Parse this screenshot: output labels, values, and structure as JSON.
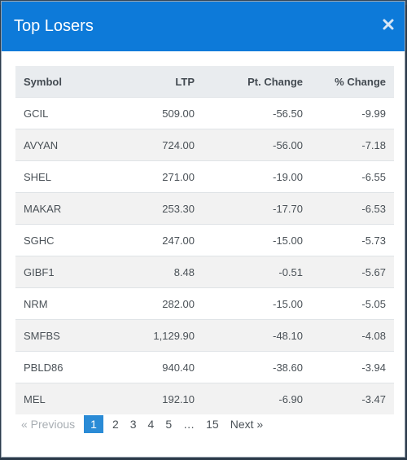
{
  "modal": {
    "title": "Top Losers",
    "close_icon": "close-icon",
    "accent_color": "#0d7ad9"
  },
  "table": {
    "headers": [
      "Symbol",
      "LTP",
      "Pt. Change",
      "% Change"
    ],
    "rows": [
      {
        "symbol": "GCIL",
        "ltp": "509.00",
        "pt_change": "-56.50",
        "pct_change": "-9.99"
      },
      {
        "symbol": "AVYAN",
        "ltp": "724.00",
        "pt_change": "-56.00",
        "pct_change": "-7.18"
      },
      {
        "symbol": "SHEL",
        "ltp": "271.00",
        "pt_change": "-19.00",
        "pct_change": "-6.55"
      },
      {
        "symbol": "MAKAR",
        "ltp": "253.30",
        "pt_change": "-17.70",
        "pct_change": "-6.53"
      },
      {
        "symbol": "SGHC",
        "ltp": "247.00",
        "pt_change": "-15.00",
        "pct_change": "-5.73"
      },
      {
        "symbol": "GIBF1",
        "ltp": "8.48",
        "pt_change": "-0.51",
        "pct_change": "-5.67"
      },
      {
        "symbol": "NRM",
        "ltp": "282.00",
        "pt_change": "-15.00",
        "pct_change": "-5.05"
      },
      {
        "symbol": "SMFBS",
        "ltp": "1,129.90",
        "pt_change": "-48.10",
        "pct_change": "-4.08"
      },
      {
        "symbol": "PBLD86",
        "ltp": "940.40",
        "pt_change": "-38.60",
        "pct_change": "-3.94"
      },
      {
        "symbol": "MEL",
        "ltp": "192.10",
        "pt_change": "-6.90",
        "pct_change": "-3.47"
      }
    ],
    "negative_color": "#e2403a"
  },
  "pagination": {
    "previous": "« Previous",
    "pages": [
      "1",
      "2",
      "3",
      "4",
      "5"
    ],
    "ellipsis": "…",
    "last": "15",
    "next": "Next »",
    "current": "1"
  }
}
